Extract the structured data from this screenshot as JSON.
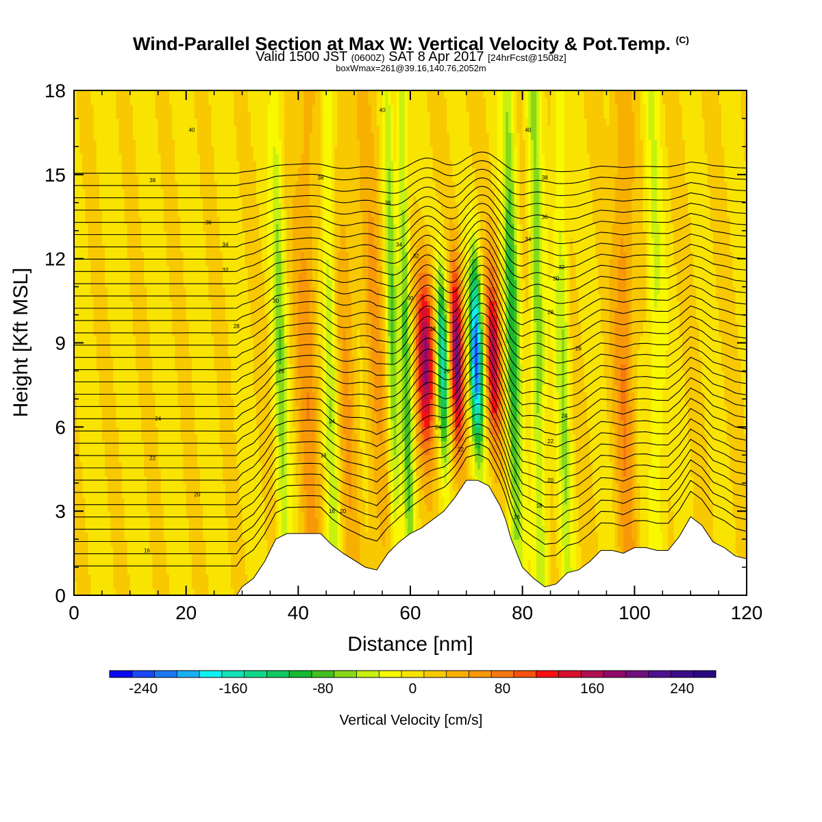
{
  "header": {
    "title_main": "Wind-Parallel Section at Max W: Vertical Velocity & Pot.Temp.",
    "title_unit": "(C)",
    "subtitle_pre": "Valid 1500 JST",
    "subtitle_utc": "(0600Z)",
    "subtitle_date": "SAT 8 Apr 2017",
    "subtitle_fcst": "[24hrFcst@1508z]",
    "box_info": "boxWmax=261@39.16,140.76,2052m"
  },
  "chart_data": {
    "type": "heatmap",
    "title": "Wind-Parallel Section at Max W: Vertical Velocity & Pot.Temp. (C)",
    "xlabel": "Distance [nm]",
    "ylabel": "Height [Kft MSL]",
    "xlim": [
      0,
      120
    ],
    "ylim": [
      0,
      18
    ],
    "x_ticks": [
      0,
      20,
      40,
      60,
      80,
      100,
      120
    ],
    "y_ticks": [
      0,
      3,
      6,
      9,
      12,
      15,
      18
    ],
    "colorbar": {
      "label": "Vertical Velocity [cm/s]",
      "min": -270,
      "max": 270,
      "step": 20,
      "tick_values": [
        -240,
        -160,
        -80,
        0,
        80,
        160,
        240
      ],
      "colors": [
        "#0a0af0",
        "#1a48f5",
        "#1a78f5",
        "#18b0f5",
        "#10f0f0",
        "#14e0b8",
        "#10d888",
        "#10c860",
        "#18b830",
        "#40c020",
        "#88d818",
        "#c8f010",
        "#f8f800",
        "#f8e400",
        "#f8c800",
        "#f8b000",
        "#f89808",
        "#f87810",
        "#f85010",
        "#f81010",
        "#d81030",
        "#b01050",
        "#900868",
        "#701080",
        "#501090",
        "#3a0c8a",
        "#2a0880"
      ]
    },
    "updraft_bands": [
      {
        "x": 37,
        "w": 1.2,
        "amp": -65
      },
      {
        "x": 42,
        "w": 2.0,
        "amp": 55
      },
      {
        "x": 46,
        "w": 1.2,
        "amp": -60
      },
      {
        "x": 49,
        "w": 1.8,
        "amp": 40
      },
      {
        "x": 54,
        "w": 2.0,
        "amp": 40
      },
      {
        "x": 57,
        "w": 1.0,
        "amp": -75
      },
      {
        "x": 59.5,
        "w": 1.0,
        "amp": -90
      },
      {
        "x": 63,
        "w": 1.6,
        "amp": 170
      },
      {
        "x": 66,
        "w": 1.0,
        "amp": -170
      },
      {
        "x": 68.5,
        "w": 1.1,
        "amp": 180
      },
      {
        "x": 72,
        "w": 1.1,
        "amp": -240
      },
      {
        "x": 75,
        "w": 1.3,
        "amp": 140
      },
      {
        "x": 78.5,
        "w": 1.3,
        "amp": -100
      },
      {
        "x": 83,
        "w": 1.2,
        "amp": -80
      },
      {
        "x": 87.5,
        "w": 1.2,
        "amp": -60
      },
      {
        "x": 98.5,
        "w": 1.8,
        "amp": 65
      },
      {
        "x": 104,
        "w": 1.5,
        "amp": -45
      }
    ],
    "terrain": {
      "x": [
        0,
        29,
        30,
        32,
        34,
        36,
        38,
        40,
        44,
        46,
        48,
        52,
        54,
        56,
        58,
        60,
        62,
        66,
        68,
        70,
        72,
        74,
        76,
        77,
        78,
        80,
        82,
        84,
        86,
        88,
        90,
        92,
        94,
        96,
        98,
        100,
        102,
        104,
        106,
        108,
        110,
        112,
        114,
        116,
        118,
        120
      ],
      "y": [
        0,
        0,
        0.3,
        0.6,
        1.2,
        2.0,
        2.2,
        2.2,
        2.2,
        1.8,
        1.5,
        1.0,
        0.9,
        1.5,
        1.9,
        2.2,
        2.4,
        3.0,
        3.5,
        4.1,
        4.1,
        3.9,
        3.2,
        2.7,
        2.0,
        1.0,
        0.6,
        0.3,
        0.4,
        0.8,
        0.9,
        1.2,
        1.6,
        1.6,
        1.5,
        1.7,
        1.7,
        1.6,
        1.6,
        2.1,
        2.8,
        2.5,
        1.9,
        1.7,
        1.4,
        1.3
      ]
    },
    "theta_levels": [
      11,
      12,
      13,
      14,
      15,
      16,
      17,
      18,
      19,
      20,
      21,
      22,
      23,
      24,
      25,
      26,
      27,
      28,
      29,
      30,
      31,
      32,
      33,
      34,
      35,
      36,
      37,
      38,
      39,
      40,
      41,
      42,
      43
    ],
    "theta_labels": [
      {
        "x": 13,
        "y": 1.6,
        "text": "16"
      },
      {
        "x": 22,
        "y": 3.6,
        "text": "20"
      },
      {
        "x": 14,
        "y": 4.9,
        "text": "22"
      },
      {
        "x": 15,
        "y": 6.3,
        "text": "24"
      },
      {
        "x": 37,
        "y": 8.0,
        "text": "26"
      },
      {
        "x": 29,
        "y": 9.6,
        "text": "28"
      },
      {
        "x": 36,
        "y": 10.5,
        "text": "30"
      },
      {
        "x": 27,
        "y": 11.6,
        "text": "32"
      },
      {
        "x": 27,
        "y": 12.5,
        "text": "34"
      },
      {
        "x": 24,
        "y": 13.3,
        "text": "36"
      },
      {
        "x": 14,
        "y": 14.8,
        "text": "38"
      },
      {
        "x": 21,
        "y": 16.6,
        "text": "40"
      },
      {
        "x": 44.5,
        "y": 5.0,
        "text": "18"
      },
      {
        "x": 46,
        "y": 6.2,
        "text": "24"
      },
      {
        "x": 46,
        "y": 3.0,
        "text": "16"
      },
      {
        "x": 48,
        "y": 3.0,
        "text": "20"
      },
      {
        "x": 56,
        "y": 14.0,
        "text": "36"
      },
      {
        "x": 58,
        "y": 12.5,
        "text": "34"
      },
      {
        "x": 61,
        "y": 12.1,
        "text": "32"
      },
      {
        "x": 60,
        "y": 10.6,
        "text": "30"
      },
      {
        "x": 64,
        "y": 9.5,
        "text": "28"
      },
      {
        "x": 66.5,
        "y": 8.0,
        "text": "26"
      },
      {
        "x": 65,
        "y": 6.0,
        "text": "24"
      },
      {
        "x": 69,
        "y": 5.2,
        "text": "22"
      },
      {
        "x": 44,
        "y": 14.9,
        "text": "38"
      },
      {
        "x": 55,
        "y": 17.3,
        "text": "40"
      },
      {
        "x": 81,
        "y": 16.6,
        "text": "40"
      },
      {
        "x": 84,
        "y": 14.9,
        "text": "38"
      },
      {
        "x": 84,
        "y": 13.5,
        "text": "36"
      },
      {
        "x": 81,
        "y": 12.7,
        "text": "34"
      },
      {
        "x": 87,
        "y": 11.7,
        "text": "32"
      },
      {
        "x": 86,
        "y": 11.3,
        "text": "30"
      },
      {
        "x": 85,
        "y": 10.1,
        "text": "28"
      },
      {
        "x": 90,
        "y": 8.8,
        "text": "26"
      },
      {
        "x": 87.5,
        "y": 6.4,
        "text": "24"
      },
      {
        "x": 85,
        "y": 5.5,
        "text": "22"
      },
      {
        "x": 85,
        "y": 4.1,
        "text": "20"
      },
      {
        "x": 83,
        "y": 3.2,
        "text": "18"
      },
      {
        "x": 79,
        "y": 2.8,
        "text": "16"
      }
    ]
  }
}
